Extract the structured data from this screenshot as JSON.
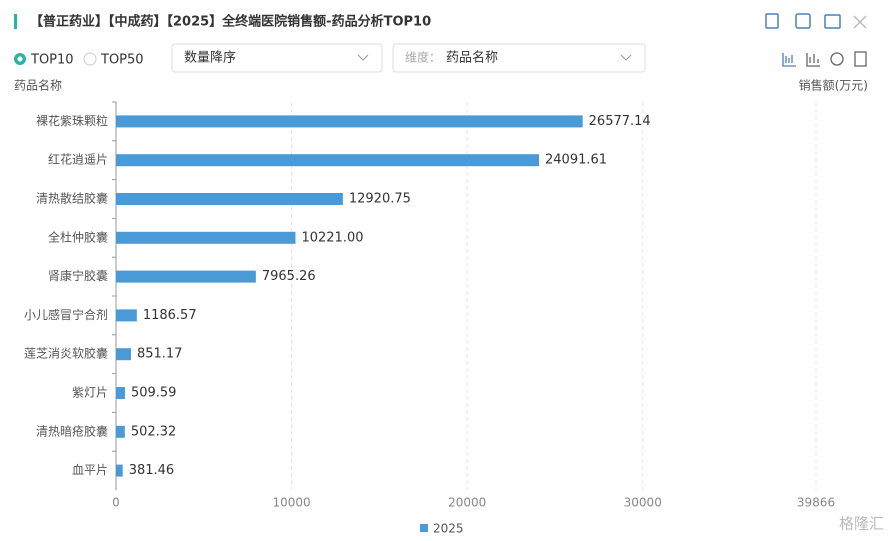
{
  "header": {
    "title": "【普正药业】【中成药】【2025】全终端医院销售额-药品分析TOP10"
  },
  "controls": {
    "top10": "TOP10",
    "top50": "TOP50",
    "sort": "数量降序",
    "dimension_label": "维度：",
    "dimension": "药品名称"
  },
  "watermark": "格隆汇",
  "chart_data": {
    "type": "hbar",
    "y_label": "药品名称",
    "x_label": "销售额(万元)",
    "categories": [
      "裸花紫珠颗粒",
      "红花逍遥片",
      "清热散结胶囊",
      "全杜仲胶囊",
      "肾康宁胶囊",
      "小儿感冒宁合剂",
      "莲芝消炎软胶囊",
      "紫灯片",
      "清热暗疮胶囊",
      "血平片"
    ],
    "series": [
      {
        "name": "2025",
        "color": "#4a9ad8",
        "values": [
          26577.14,
          24091.61,
          12920.75,
          10221.0,
          7965.26,
          1186.57,
          851.17,
          509.59,
          502.32,
          381.46
        ],
        "value_labels": [
          "26577.14",
          "24091.61",
          "12920.75",
          "10221.00",
          "7965.26",
          "1186.57",
          "851.17",
          "509.59",
          "502.32",
          "381.46"
        ]
      }
    ],
    "xlim": [
      0,
      39866
    ],
    "xticks": [
      0,
      10000,
      20000,
      30000,
      39866
    ],
    "grid": true
  }
}
